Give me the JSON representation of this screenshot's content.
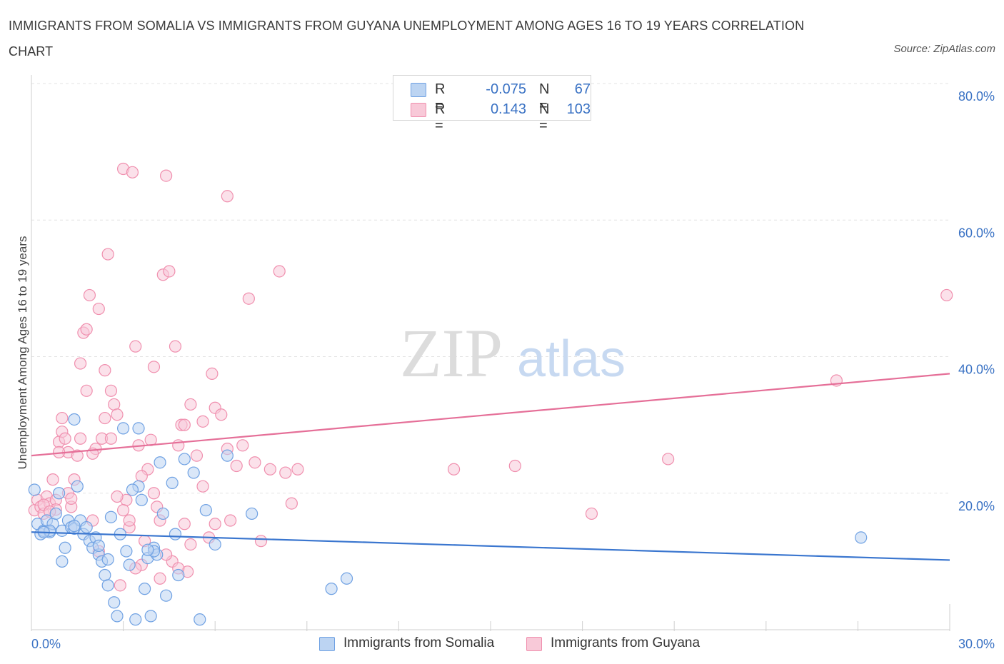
{
  "header": {
    "title": "IMMIGRANTS FROM SOMALIA VS IMMIGRANTS FROM GUYANA UNEMPLOYMENT AMONG AGES 16 TO 19 YEARS CORRELATION CHART",
    "source": "Source: ZipAtlas.com"
  },
  "watermark": {
    "zip": "ZIP",
    "atlas": "atlas"
  },
  "legend": {
    "somalia": {
      "r_label": "R =",
      "r_value": "-0.075",
      "n_label": "N =",
      "n_value": "67",
      "color": "#6fa1e3"
    },
    "guyana": {
      "r_label": "R =",
      "r_value": "0.143",
      "n_label": "N =",
      "n_value": "103",
      "color": "#f08fae"
    }
  },
  "bottom_legend": {
    "somalia_label": "Immigrants from Somalia",
    "guyana_label": "Immigrants from Guyana"
  },
  "colors": {
    "somalia_fill": "#bcd4f2",
    "somalia_stroke": "#6fa1e3",
    "somalia_line": "#3a76cf",
    "guyana_fill": "#f8c9d8",
    "guyana_stroke": "#f08fae",
    "guyana_line": "#e56f98",
    "tick_text": "#3a72c4"
  },
  "chart_data": {
    "type": "scatter",
    "title": "IMMIGRANTS FROM SOMALIA VS IMMIGRANTS FROM GUYANA UNEMPLOYMENT AMONG AGES 16 TO 19 YEARS CORRELATION CHART",
    "xlabel": "",
    "ylabel": "Unemployment Among Ages 16 to 19 years",
    "xlim": [
      0,
      30
    ],
    "ylim": [
      0,
      80
    ],
    "x_tick_labels": [
      "0.0%",
      "30.0%"
    ],
    "y_ticks": [
      20,
      40,
      60,
      80
    ],
    "y_tick_labels": [
      "20.0%",
      "40.0%",
      "60.0%",
      "80.0%"
    ],
    "grid": true,
    "legend_position": "top-center",
    "series": [
      {
        "name": "Immigrants from Somalia",
        "trend": {
          "x": [
            0,
            30
          ],
          "y": [
            14.3,
            10.2
          ]
        },
        "points": [
          [
            0.1,
            20.5
          ],
          [
            0.2,
            15.5
          ],
          [
            0.3,
            14.0
          ],
          [
            0.4,
            14.5
          ],
          [
            0.5,
            16.0
          ],
          [
            0.6,
            14.3
          ],
          [
            0.7,
            15.5
          ],
          [
            0.8,
            17.0
          ],
          [
            0.9,
            20.0
          ],
          [
            1.0,
            14.5
          ],
          [
            1.1,
            12.0
          ],
          [
            1.2,
            16.0
          ],
          [
            1.3,
            15.0
          ],
          [
            1.4,
            14.8
          ],
          [
            1.5,
            21.0
          ],
          [
            1.6,
            16.0
          ],
          [
            1.7,
            14.0
          ],
          [
            1.8,
            15.0
          ],
          [
            1.9,
            13.0
          ],
          [
            2.0,
            12.0
          ],
          [
            2.1,
            13.5
          ],
          [
            2.2,
            11.0
          ],
          [
            2.3,
            10.0
          ],
          [
            2.4,
            8.0
          ],
          [
            2.5,
            6.5
          ],
          [
            2.6,
            16.5
          ],
          [
            2.7,
            4.0
          ],
          [
            2.8,
            2.0
          ],
          [
            2.9,
            14.0
          ],
          [
            3.0,
            29.5
          ],
          [
            3.1,
            11.5
          ],
          [
            3.2,
            9.5
          ],
          [
            3.4,
            1.5
          ],
          [
            3.5,
            21.0
          ],
          [
            3.6,
            19.0
          ],
          [
            3.7,
            6.0
          ],
          [
            3.8,
            10.5
          ],
          [
            3.9,
            2.0
          ],
          [
            4.0,
            12.0
          ],
          [
            4.1,
            11.0
          ],
          [
            4.2,
            24.5
          ],
          [
            4.3,
            17.0
          ],
          [
            4.4,
            5.0
          ],
          [
            4.6,
            21.5
          ],
          [
            4.7,
            14.0
          ],
          [
            4.8,
            8.0
          ],
          [
            5.0,
            25.0
          ],
          [
            5.3,
            23.0
          ],
          [
            5.5,
            1.5
          ],
          [
            5.7,
            17.5
          ],
          [
            6.0,
            12.5
          ],
          [
            6.4,
            25.5
          ],
          [
            7.2,
            17.0
          ],
          [
            9.8,
            6.0
          ],
          [
            10.3,
            7.5
          ],
          [
            27.1,
            13.5
          ],
          [
            0.6,
            14.5
          ],
          [
            1.4,
            15.2
          ],
          [
            2.2,
            12.3
          ],
          [
            3.3,
            20.5
          ],
          [
            1.4,
            30.8
          ],
          [
            3.5,
            29.5
          ],
          [
            4.0,
            11.5
          ],
          [
            1.0,
            10.0
          ],
          [
            0.4,
            14.3
          ],
          [
            2.5,
            10.3
          ],
          [
            3.8,
            11.7
          ]
        ]
      },
      {
        "name": "Immigrants from Guyana",
        "trend": {
          "x": [
            0,
            30
          ],
          "y": [
            25.5,
            37.5
          ]
        },
        "points": [
          [
            0.1,
            17.5
          ],
          [
            0.2,
            19.0
          ],
          [
            0.3,
            18.0
          ],
          [
            0.4,
            17.0
          ],
          [
            0.5,
            19.5
          ],
          [
            0.6,
            18.5
          ],
          [
            0.7,
            22.0
          ],
          [
            0.8,
            19.0
          ],
          [
            0.9,
            27.5
          ],
          [
            1.0,
            29.0
          ],
          [
            1.1,
            28.0
          ],
          [
            1.2,
            26.0
          ],
          [
            1.3,
            18.0
          ],
          [
            1.4,
            22.0
          ],
          [
            1.5,
            25.5
          ],
          [
            1.6,
            39.0
          ],
          [
            1.7,
            43.5
          ],
          [
            1.8,
            44.0
          ],
          [
            1.9,
            49.0
          ],
          [
            2.0,
            16.0
          ],
          [
            2.1,
            26.5
          ],
          [
            2.2,
            47.0
          ],
          [
            2.3,
            28.0
          ],
          [
            2.4,
            38.0
          ],
          [
            2.5,
            55.0
          ],
          [
            2.6,
            35.0
          ],
          [
            2.7,
            33.0
          ],
          [
            2.8,
            31.5
          ],
          [
            2.9,
            6.5
          ],
          [
            3.0,
            67.5
          ],
          [
            3.1,
            19.0
          ],
          [
            3.2,
            15.0
          ],
          [
            3.3,
            67.0
          ],
          [
            3.4,
            41.5
          ],
          [
            3.5,
            27.0
          ],
          [
            3.6,
            9.5
          ],
          [
            3.7,
            13.0
          ],
          [
            3.8,
            23.5
          ],
          [
            3.9,
            27.8
          ],
          [
            4.0,
            38.5
          ],
          [
            4.1,
            18.0
          ],
          [
            4.2,
            16.0
          ],
          [
            4.3,
            52.0
          ],
          [
            4.4,
            66.5
          ],
          [
            4.5,
            52.5
          ],
          [
            4.6,
            10.0
          ],
          [
            4.7,
            41.5
          ],
          [
            4.8,
            27.0
          ],
          [
            4.9,
            30.0
          ],
          [
            5.0,
            15.5
          ],
          [
            5.1,
            8.5
          ],
          [
            5.2,
            33.0
          ],
          [
            5.4,
            25.5
          ],
          [
            5.6,
            30.5
          ],
          [
            5.8,
            13.5
          ],
          [
            5.9,
            37.5
          ],
          [
            6.0,
            32.5
          ],
          [
            6.2,
            31.5
          ],
          [
            6.4,
            63.5
          ],
          [
            6.5,
            16.0
          ],
          [
            6.7,
            24.0
          ],
          [
            6.9,
            27.0
          ],
          [
            7.1,
            48.5
          ],
          [
            7.3,
            24.5
          ],
          [
            7.5,
            13.0
          ],
          [
            7.8,
            23.5
          ],
          [
            8.1,
            52.5
          ],
          [
            8.3,
            23.0
          ],
          [
            8.5,
            18.5
          ],
          [
            8.7,
            23.5
          ],
          [
            13.8,
            23.5
          ],
          [
            15.8,
            24.0
          ],
          [
            18.3,
            17.0
          ],
          [
            20.8,
            25.0
          ],
          [
            26.3,
            36.5
          ],
          [
            29.9,
            49.0
          ],
          [
            0.4,
            18.3
          ],
          [
            0.8,
            17.6
          ],
          [
            1.2,
            20.0
          ],
          [
            1.6,
            28.0
          ],
          [
            2.0,
            25.8
          ],
          [
            2.4,
            31.0
          ],
          [
            2.8,
            19.5
          ],
          [
            3.2,
            16.0
          ],
          [
            3.6,
            22.5
          ],
          [
            4.0,
            20.0
          ],
          [
            4.4,
            11.0
          ],
          [
            4.8,
            9.0
          ],
          [
            5.2,
            12.5
          ],
          [
            5.6,
            21.0
          ],
          [
            6.0,
            15.5
          ],
          [
            6.4,
            26.5
          ],
          [
            1.0,
            31.0
          ],
          [
            1.8,
            35.0
          ],
          [
            2.6,
            28.0
          ],
          [
            3.4,
            9.0
          ],
          [
            4.2,
            7.5
          ],
          [
            5.0,
            30.0
          ],
          [
            0.6,
            17.3
          ],
          [
            1.3,
            19.2
          ],
          [
            2.2,
            11.5
          ],
          [
            3.0,
            17.5
          ],
          [
            0.9,
            26.0
          ]
        ]
      }
    ]
  }
}
